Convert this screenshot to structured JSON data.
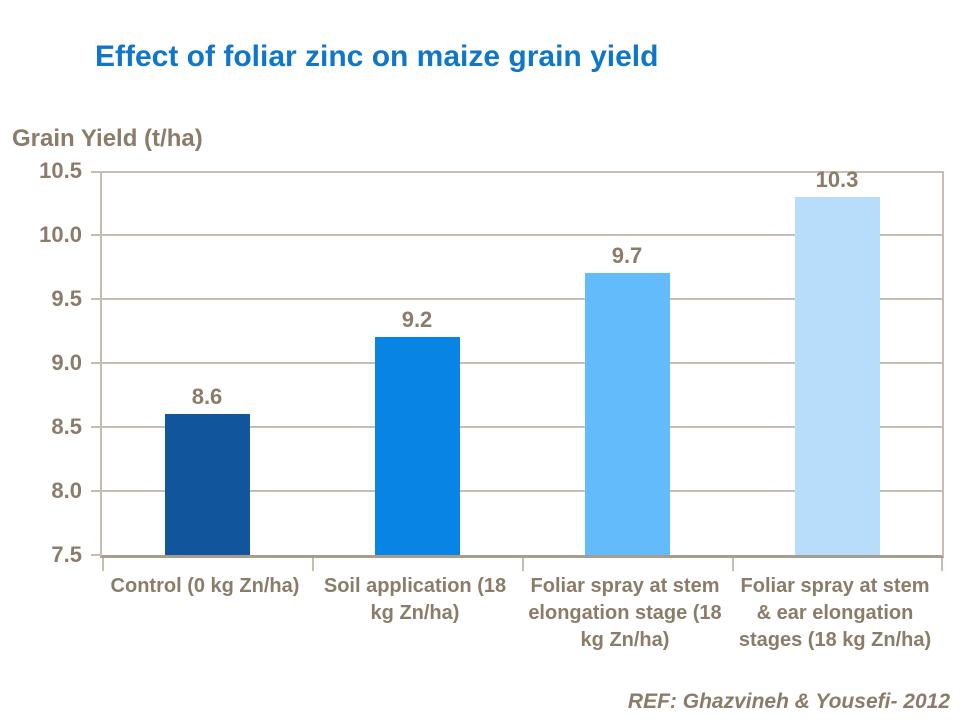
{
  "title": "Effect of foliar zinc on maize grain yield",
  "y_axis_title": "Grain Yield (t/ha)",
  "reference": "REF: Ghazvineh & Yousefi- 2012",
  "colors": {
    "title_blue": "#0F76C8",
    "text_brown": "#8B7C6A",
    "gridline": "#C7BDB1",
    "axis": "#A79D8F",
    "bar_colors": [
      "#11569D",
      "#0884E4",
      "#64BBFB",
      "#B7DDFB"
    ]
  },
  "chart_data": {
    "type": "bar",
    "title": "Effect of foliar zinc on maize grain yield",
    "xlabel": "",
    "ylabel": "Grain Yield (t/ha)",
    "categories": [
      "Control (0 kg Zn/ha)",
      "Soil application (18 kg Zn/ha)",
      "Foliar spray at stem elongation stage (18 kg Zn/ha)",
      "Foliar spray at stem & ear elongation stages (18 kg Zn/ha)"
    ],
    "values": [
      8.6,
      9.2,
      9.7,
      10.3
    ],
    "value_labels": [
      "8.6",
      "9.2",
      "9.7",
      "10.3"
    ],
    "ylim": [
      7.5,
      10.5
    ],
    "ytick_step": 0.5,
    "yticks": [
      "10.5",
      "10.0",
      "9.5",
      "9.0",
      "8.5",
      "8.0",
      "7.5"
    ],
    "grid": true,
    "legend": false
  }
}
